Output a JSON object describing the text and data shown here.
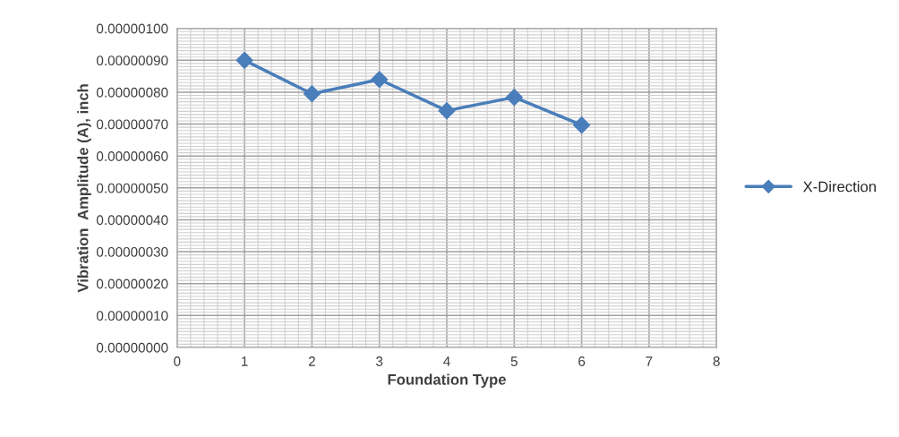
{
  "chart_data": {
    "type": "line",
    "xlabel": "Foundation Type",
    "ylabel": "Vibration  Amplitude (A), inch",
    "series": [
      {
        "name": "X-Direction",
        "color": "#4a7ebb",
        "x": [
          1,
          2,
          3,
          4,
          5,
          6
        ],
        "values": [
          9e-07,
          7.95e-07,
          8.4e-07,
          7.42e-07,
          7.84e-07,
          6.97e-07
        ]
      }
    ],
    "xlim": [
      0,
      8
    ],
    "xticks": [
      0,
      1,
      2,
      3,
      4,
      5,
      6,
      7,
      8
    ],
    "ylim": [
      0,
      1e-06
    ],
    "yticks": [
      {
        "value": 0,
        "label": "0.00000000"
      },
      {
        "value": 1e-07,
        "label": "0.00000010"
      },
      {
        "value": 2e-07,
        "label": "0.00000020"
      },
      {
        "value": 3e-07,
        "label": "0.00000030"
      },
      {
        "value": 4e-07,
        "label": "0.00000040"
      },
      {
        "value": 5e-07,
        "label": "0.00000050"
      },
      {
        "value": 6e-07,
        "label": "0.00000060"
      },
      {
        "value": 7e-07,
        "label": "0.00000070"
      },
      {
        "value": 8e-07,
        "label": "0.00000080"
      },
      {
        "value": 9e-07,
        "label": "0.00000090"
      },
      {
        "value": 1e-06,
        "label": "0.00000100"
      }
    ],
    "grid": true,
    "legend": "right",
    "marker": "diamond",
    "line_style": "solid"
  }
}
